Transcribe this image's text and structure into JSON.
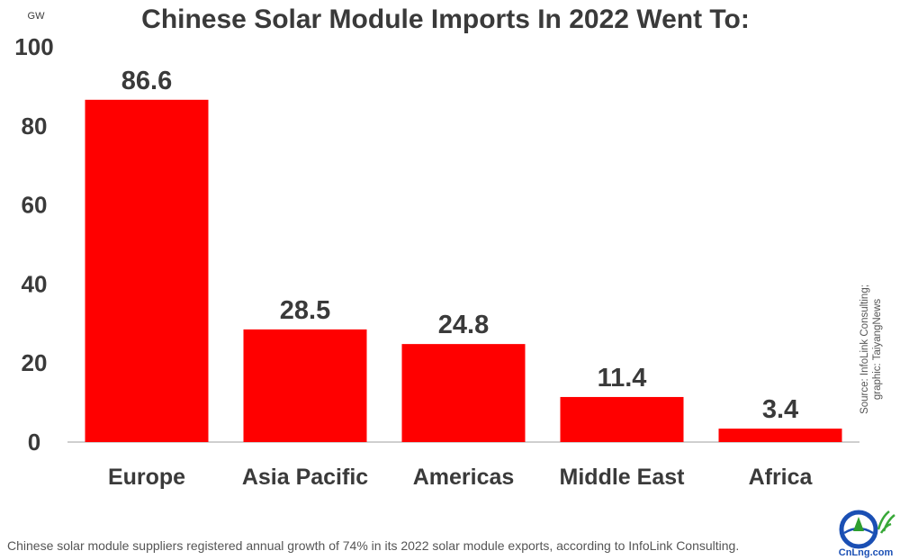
{
  "chart_data": {
    "type": "bar",
    "title": "Chinese Solar Module Imports In 2022 Went To:",
    "unit_label": "GW",
    "categories": [
      "Europe",
      "Asia Pacific",
      "Americas",
      "Middle East",
      "Africa"
    ],
    "values": [
      86.6,
      28.5,
      24.8,
      11.4,
      3.4
    ],
    "data_labels": [
      "86.6",
      "28.5",
      "24.8",
      "11.4",
      "3.4"
    ],
    "ylim": [
      0,
      100
    ],
    "yticks": [
      0,
      20,
      40,
      60,
      80,
      100
    ],
    "xlabel": "",
    "ylabel": "",
    "grid": false,
    "bar_color": "#ff0000"
  },
  "source": {
    "line1": "Source: InfoLink Consulting;",
    "line2": "graphic: TaiyangNews"
  },
  "caption": "Chinese solar module suppliers registered annual growth of 74% in its 2022 solar module exports, according to InfoLink Consulting.",
  "logo": {
    "text": "CnLng.com",
    "icon": "cnlng-logo-icon",
    "color": "#1a4fb4"
  },
  "colors": {
    "text": "#3a3a3a",
    "axis": "#bfbfbf",
    "bar": "#ff0000"
  }
}
